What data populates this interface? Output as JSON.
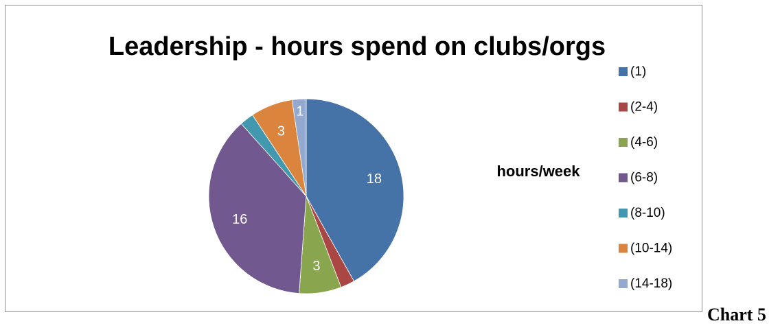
{
  "chart_data": {
    "type": "pie",
    "title": "Leadership - hours spend on clubs/orgs",
    "series_label": "hours/week",
    "legend_position": "right",
    "categories": [
      "(1)",
      "(2-4)",
      "(4-6)",
      "(6-8)",
      "(8-10)",
      "(10-14)",
      "(14-18)"
    ],
    "values": [
      18,
      1,
      3,
      16,
      1,
      3,
      1
    ],
    "data_labels": [
      "18",
      "",
      "3",
      "16",
      "",
      "3",
      "1"
    ],
    "colors": [
      "#4572A7",
      "#AA4643",
      "#89A54E",
      "#71588F",
      "#4198AF",
      "#DB843D",
      "#93A9CF"
    ]
  },
  "caption": "Chart 5"
}
